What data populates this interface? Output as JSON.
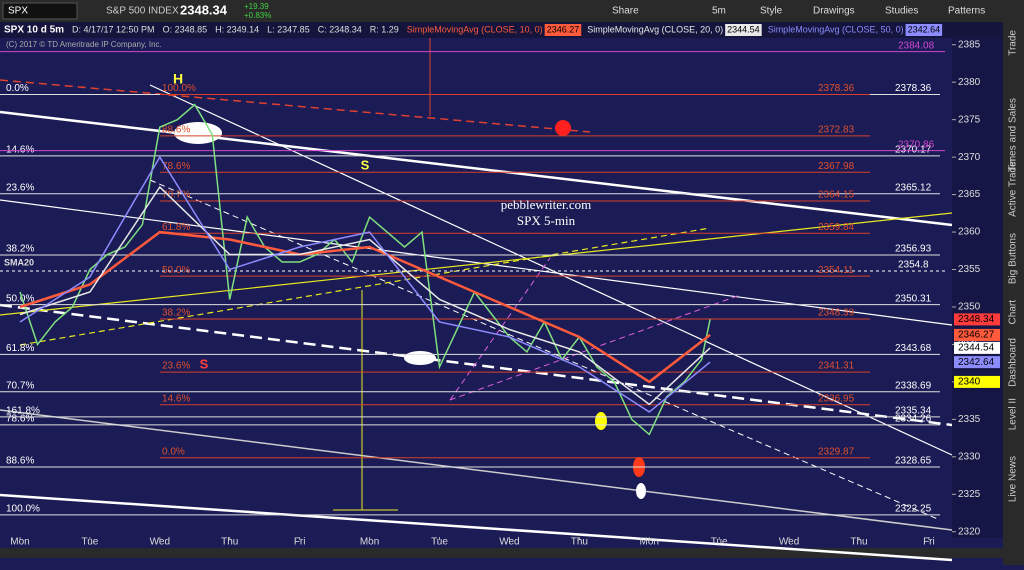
{
  "toolbar": {
    "symbol": "SPX",
    "name": "S&P 500 INDEX",
    "last": "2348.34",
    "change": "+19.39",
    "change_pct": "+0.83%",
    "buttons": [
      "Share",
      "5m",
      "Style",
      "Drawings",
      "Studies",
      "Patterns"
    ]
  },
  "info_bar": {
    "symbol_period": "SPX 10 d 5m",
    "items": [
      "D: 4/17/17 12:50 PM",
      "O: 2348.85",
      "H: 2349.14",
      "L: 2347.85",
      "C: 2348.34",
      "R: 1.29"
    ],
    "studies": [
      "SimpleMovingAvg (CLOSE, 10, 0)",
      "SimpleMovingAvg (CLOSE, 20, 0)",
      "SimpleMovingAvg (CLOSE, 50, 0)"
    ],
    "copyright": "(C) 2017 © TD Ameritrade IP Company, Inc."
  },
  "sidebar": {
    "tabs": [
      "Trade",
      "Times and Sales",
      "Active Trader",
      "Big Buttons",
      "Chart",
      "Dashboard",
      "Level II",
      "Live News"
    ]
  },
  "chart_data": {
    "type": "line",
    "title": "pebblewriter.com",
    "subtitle": "SPX 5-min",
    "xlim": [
      -0.286,
      13.33
    ],
    "xticks": [
      {
        "value": 0,
        "label": "Mon"
      },
      {
        "value": 1,
        "label": "Tue"
      },
      {
        "value": 2,
        "label": "Wed"
      },
      {
        "value": 3,
        "label": "Thu"
      },
      {
        "value": 4,
        "label": "Fri"
      },
      {
        "value": 5,
        "label": "Mon"
      },
      {
        "value": 6,
        "label": "Tue"
      },
      {
        "value": 7,
        "label": "Wed"
      },
      {
        "value": 8,
        "label": "Thu"
      },
      {
        "value": 9,
        "label": "Mon"
      },
      {
        "value": 10,
        "label": "Tue"
      },
      {
        "value": 11,
        "label": "Wed"
      },
      {
        "value": 12,
        "label": "Thu"
      },
      {
        "value": 13,
        "label": "Fri"
      }
    ],
    "ylim": [
      2319.3,
      2385.9
    ],
    "yticks": [
      2320,
      2325,
      2330,
      2335,
      2340,
      2345,
      2350,
      2355,
      2360,
      2365,
      2370,
      2375,
      2380,
      2385
    ],
    "series": [
      {
        "name": "SPX",
        "color": "#7fe07f",
        "x": [
          0,
          0.25,
          0.5,
          0.75,
          1,
          1.25,
          1.5,
          1.75,
          2,
          2.25,
          2.5,
          2.75,
          3,
          3.25,
          3.5,
          3.75,
          4,
          4.25,
          4.5,
          4.75,
          5,
          5.25,
          5.5,
          5.75,
          6,
          6.25,
          6.5,
          6.75,
          7,
          7.25,
          7.5,
          7.75,
          8,
          8.25,
          8.5,
          8.75,
          9,
          9.25,
          9.5,
          9.75,
          9.87
        ],
        "values": [
          2352,
          2345,
          2348,
          2350,
          2355,
          2357,
          2358,
          2361,
          2374,
          2375,
          2377,
          2373,
          2351,
          2362,
          2358,
          2356,
          2356,
          2357,
          2359,
          2356,
          2362,
          2360,
          2358,
          2360,
          2342,
          2347,
          2352,
          2349,
          2346,
          2344,
          2348,
          2343,
          2346,
          2342,
          2340,
          2335,
          2333,
          2338,
          2340,
          2343,
          2348.34
        ]
      },
      {
        "name": "SimpleMovingAvg (CLOSE, 10, 0)",
        "color": "#ff5a3c",
        "x": [
          0,
          1,
          2,
          3,
          4,
          5,
          6,
          7,
          8,
          9,
          9.87
        ],
        "values": [
          2350,
          2353,
          2360,
          2359,
          2357,
          2358,
          2354,
          2350,
          2346,
          2340,
          2346.27
        ]
      },
      {
        "name": "SimpleMovingAvg (CLOSE, 20, 0)",
        "color": "#e8e8e8",
        "x": [
          0,
          1,
          2,
          3,
          4,
          5,
          6,
          7,
          8,
          9,
          9.87
        ],
        "values": [
          2349,
          2352,
          2366,
          2357,
          2357,
          2359,
          2351,
          2347,
          2344,
          2337,
          2344.54
        ]
      },
      {
        "name": "SimpleMovingAvg (CLOSE, 50, 0)",
        "color": "#8c8cff",
        "x": [
          0,
          1,
          2,
          3,
          4,
          5,
          6,
          7,
          8,
          9,
          9.87
        ],
        "values": [
          2348,
          2354,
          2370,
          2355,
          2358,
          2360,
          2348,
          2346,
          2342,
          2336,
          2342.64
        ]
      }
    ],
    "price_tags": [
      {
        "value": 2348.34,
        "color": "#ff3b3b"
      },
      {
        "value": 2346.27,
        "color": "#ff5a3c"
      },
      {
        "value": 2344.54,
        "color": "#ffffff"
      },
      {
        "value": 2342.64,
        "color": "#8c8cff"
      },
      {
        "value": 2340,
        "color": "#ffff00"
      }
    ],
    "fib_white": [
      {
        "pct": "0.0%",
        "value": 2378.36
      },
      {
        "pct": "14.6%",
        "value": 2370.17
      },
      {
        "pct": "23.6%",
        "value": 2365.12
      },
      {
        "pct": "38.2%",
        "value": 2356.93
      },
      {
        "pct": "50.0%",
        "value": 2350.31
      },
      {
        "pct": "61.8%",
        "value": 2343.68
      },
      {
        "pct": "70.7%",
        "value": 2338.69
      },
      {
        "pct": "161.8%",
        "value": 2335.34
      },
      {
        "pct": "78.6%",
        "value": 2334.26
      },
      {
        "pct": "88.6%",
        "value": 2328.65
      },
      {
        "pct": "100.0%",
        "value": 2322.25
      }
    ],
    "fib_red": [
      {
        "pct": "100.0%",
        "value": 2378.36
      },
      {
        "pct": "88.6%",
        "value": 2372.83
      },
      {
        "pct": "78.6%",
        "value": 2367.98
      },
      {
        "pct": "70.7%",
        "value": 2364.15
      },
      {
        "pct": "61.8%",
        "value": 2359.84
      },
      {
        "pct": "50.0%",
        "value": 2354.11
      },
      {
        "pct": "38.2%",
        "value": 2348.39
      },
      {
        "pct": "23.6%",
        "value": 2341.31
      },
      {
        "pct": "14.6%",
        "value": 2336.95
      },
      {
        "pct": "0.0%",
        "value": 2329.87
      }
    ],
    "other_levels": [
      {
        "value": 2384.08,
        "color": "#d048d0"
      },
      {
        "value": 2370.86,
        "color": "#d048d0"
      },
      {
        "value": 2354.8,
        "color": "#ffffff"
      }
    ],
    "annotations": [
      "H",
      "S",
      "S",
      "SMA20"
    ]
  }
}
